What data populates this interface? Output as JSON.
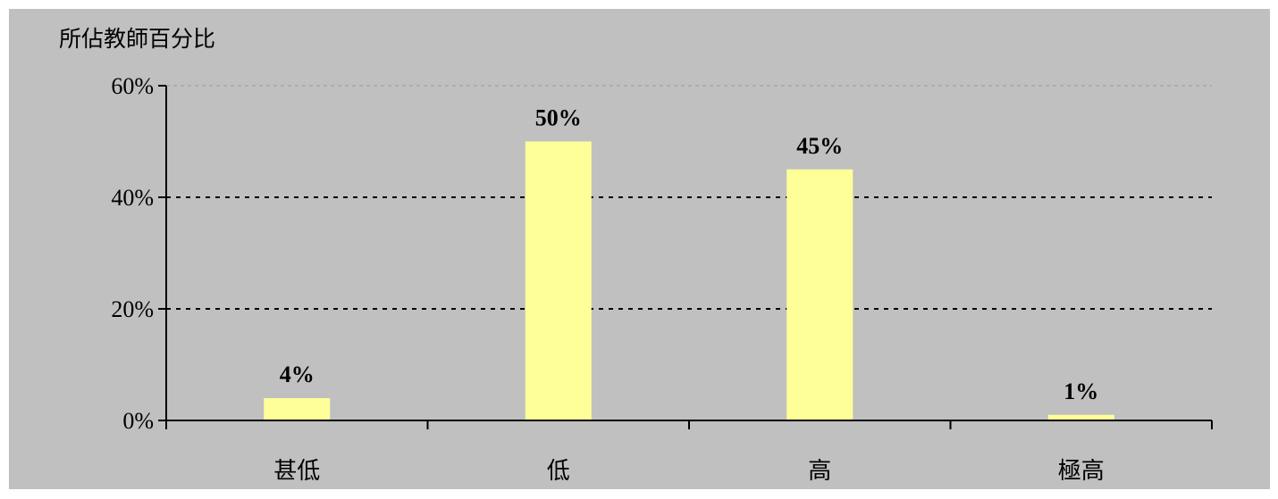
{
  "chart_data": {
    "type": "bar",
    "categories": [
      "甚低",
      "低",
      "高",
      "極高"
    ],
    "values": [
      4,
      50,
      45,
      1
    ],
    "value_labels": [
      "4%",
      "50%",
      "45%",
      "1%"
    ],
    "title": "",
    "xlabel": "",
    "ylabel": "所佔教師百分比",
    "ylim": [
      0,
      60
    ],
    "yticks": [
      0,
      20,
      40,
      60
    ],
    "ytick_labels": [
      "0%",
      "20%",
      "40%",
      "60%"
    ],
    "grid": true,
    "legend": "none",
    "colors": {
      "background": "#c0c0c0",
      "bar": "#ffff99",
      "axis": "#000000",
      "grid": "#000000"
    }
  }
}
